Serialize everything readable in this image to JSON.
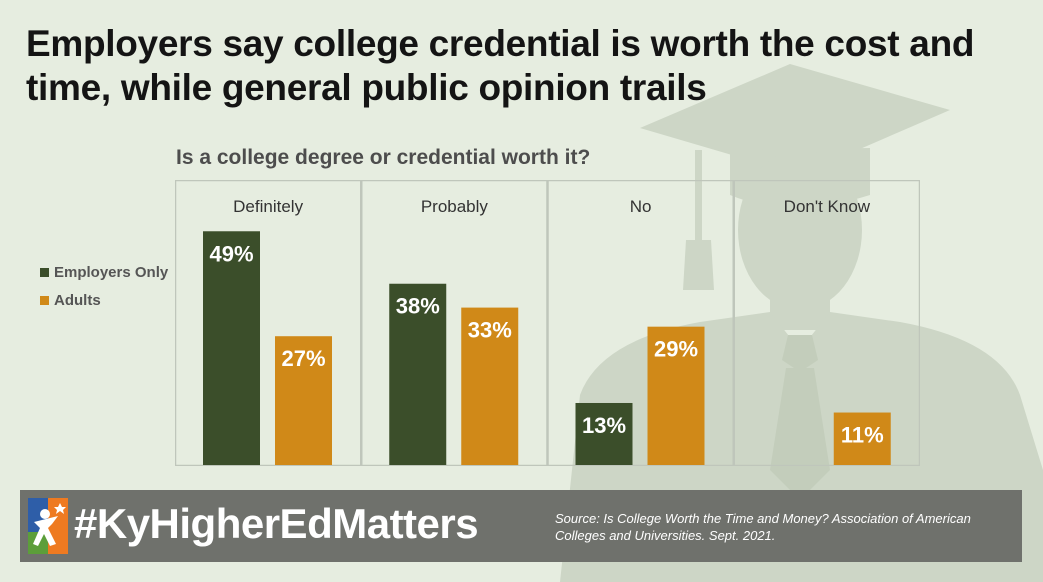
{
  "title": "Employers say college credential is worth the cost and time, while general public opinion trails",
  "colors": {
    "background": "#e6ede0",
    "employers": "#3b4e2a",
    "adults": "#d08918",
    "silhouette": "#cdd6c6",
    "footer": "#6f716c",
    "logo_blue": "#2e5ea8",
    "logo_green": "#5c9e3a",
    "logo_orange": "#ee7a21"
  },
  "chart_data": {
    "type": "bar",
    "title": "Is a college degree or credential worth it?",
    "categories": [
      "Definitely",
      "Probably",
      "No",
      "Don't Know"
    ],
    "series": [
      {
        "name": "Employers Only",
        "values": [
          49,
          38,
          13,
          null
        ],
        "labels": [
          "49%",
          "38%",
          "13%",
          ""
        ]
      },
      {
        "name": "Adults",
        "values": [
          27,
          33,
          29,
          11
        ],
        "labels": [
          "27%",
          "33%",
          "29%",
          "11%"
        ]
      }
    ],
    "unit": "%",
    "ylim": [
      0,
      60
    ],
    "legend_position": "left",
    "grid": false
  },
  "footer": {
    "hashtag": "#KyHigherEdMatters",
    "source": "Source: Is College Worth the Time and Money? Association of American Colleges and Universities. Sept. 2021.",
    "logo_icon": "kentucky-higher-ed-logo-icon"
  }
}
